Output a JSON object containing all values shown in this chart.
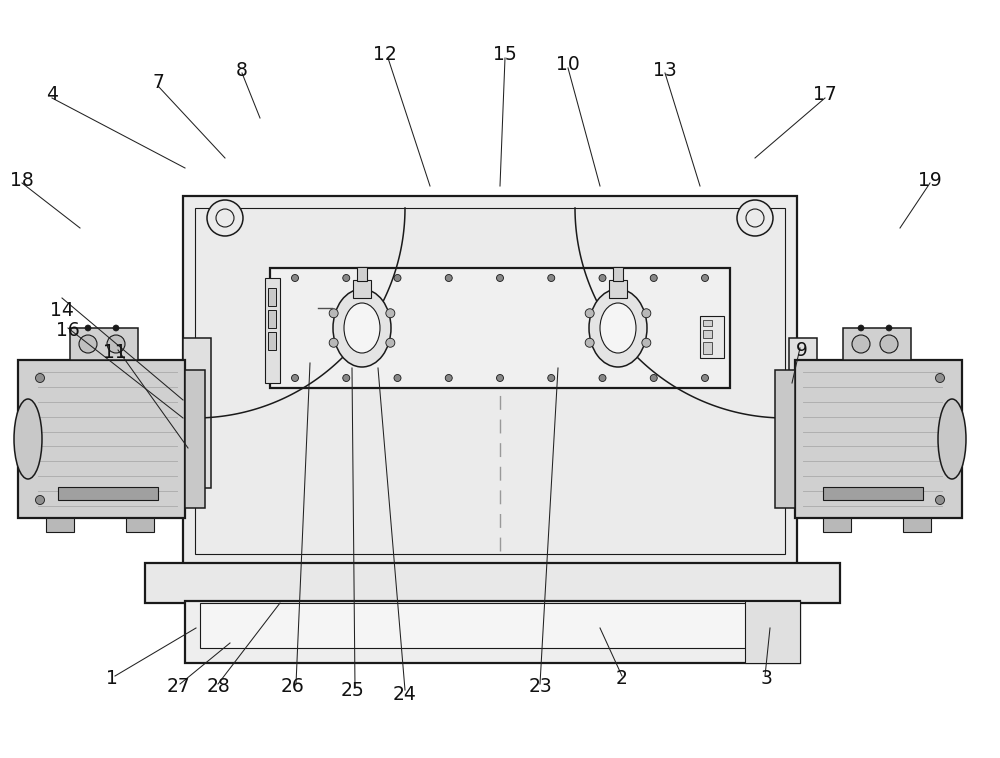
{
  "bg_color": "#ffffff",
  "line_color": "#1a1a1a",
  "light_gray": "#d8d8d8",
  "mid_gray": "#a8a8a8",
  "dark_gray": "#505050",
  "panel_gray": "#ebebeb",
  "motor_gray": "#d0d0d0",
  "rib_color": "#b0b0b0"
}
